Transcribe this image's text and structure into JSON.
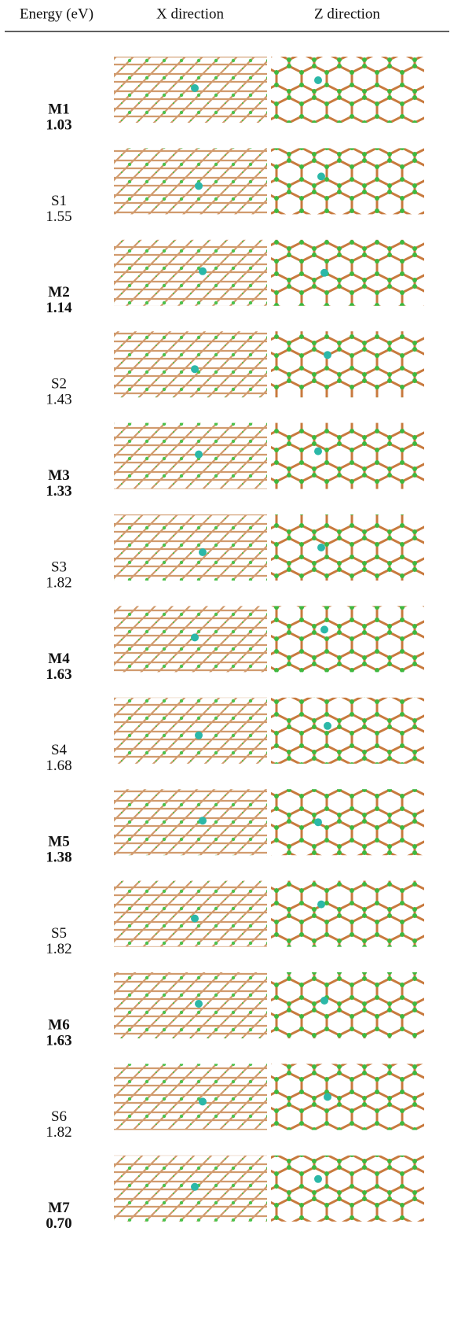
{
  "header": {
    "energy": "Energy (eV)",
    "x_direction": "X direction",
    "z_direction": "Z direction"
  },
  "rows": [
    {
      "label": "M1",
      "energy": "1.03"
    },
    {
      "label": "S1",
      "energy": "1.55"
    },
    {
      "label": "M2",
      "energy": "1.14"
    },
    {
      "label": "S2",
      "energy": "1.43"
    },
    {
      "label": "M3",
      "energy": "1.33"
    },
    {
      "label": "S3",
      "energy": "1.82"
    },
    {
      "label": "M4",
      "energy": "1.63"
    },
    {
      "label": "S4",
      "energy": "1.68"
    },
    {
      "label": "M5",
      "energy": "1.38"
    },
    {
      "label": "S5",
      "energy": "1.82"
    },
    {
      "label": "M6",
      "energy": "1.63"
    },
    {
      "label": "S6",
      "energy": "1.82"
    },
    {
      "label": "M7",
      "energy": "0.70"
    }
  ]
}
